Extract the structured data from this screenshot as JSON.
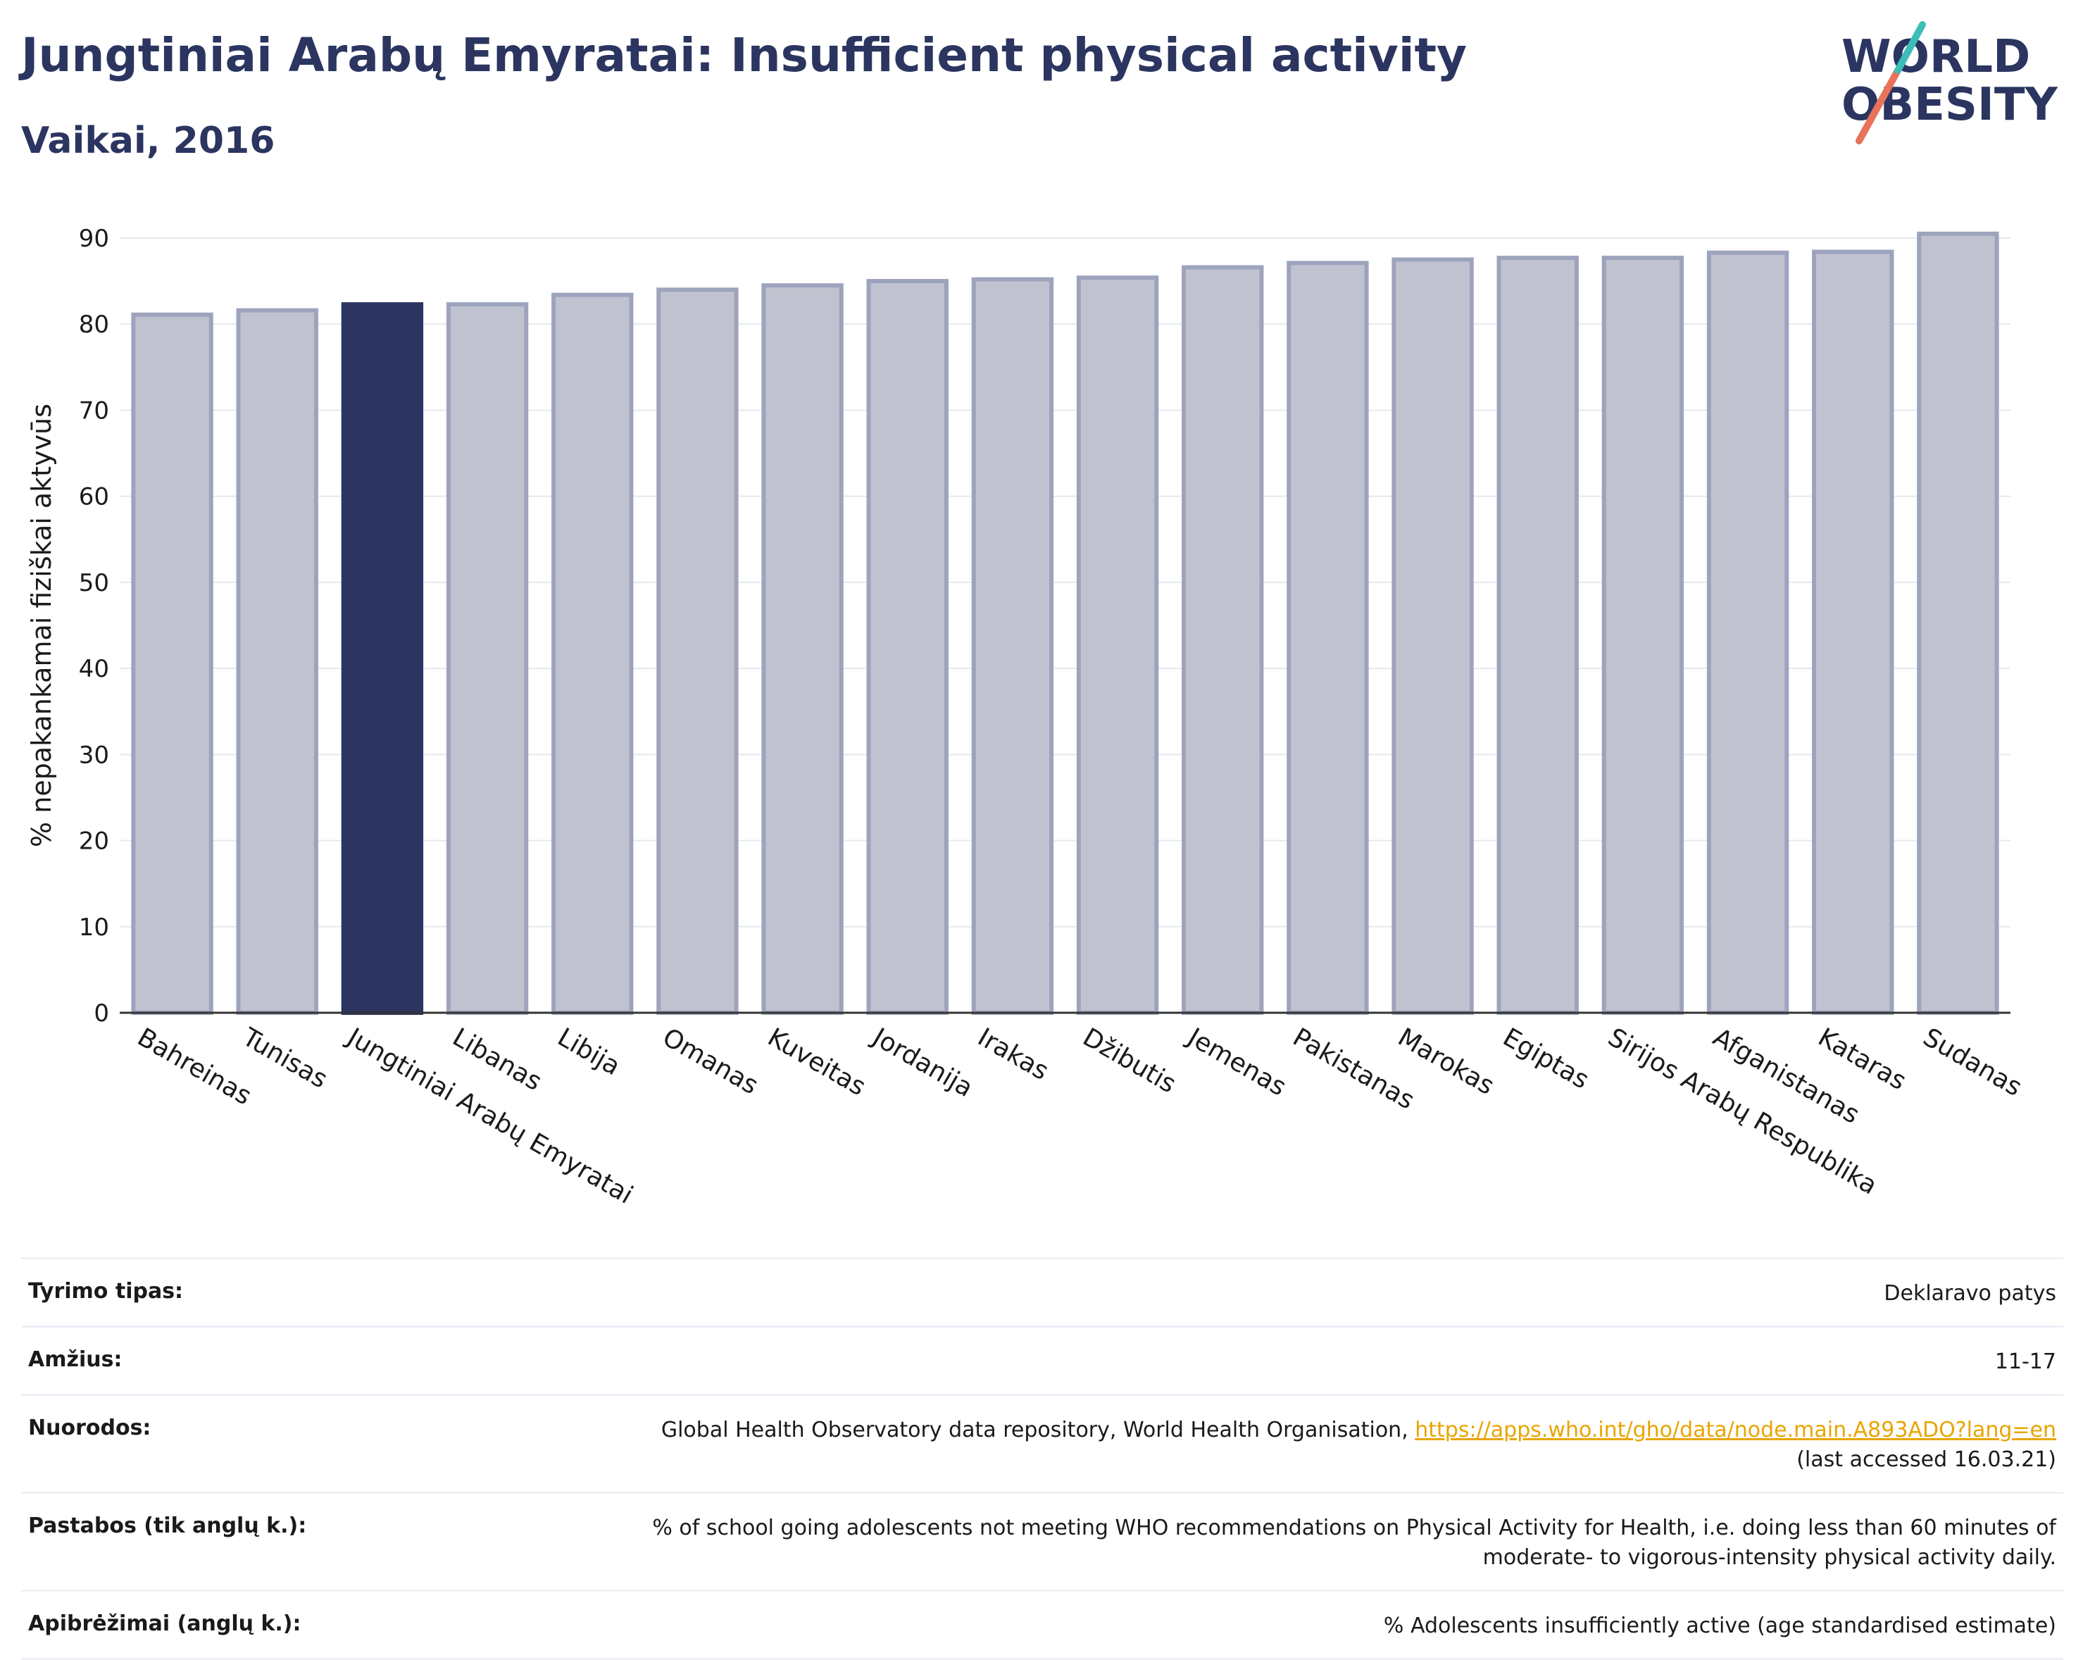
{
  "header": {
    "title": "Jungtiniai Arabų Emyratai: Insufficient physical activity",
    "subtitle": "Vaikai, 2016"
  },
  "logo": {
    "line1": "WORLD",
    "line2": "OBESITY"
  },
  "chart_data": {
    "type": "bar",
    "title": "Jungtiniai Arabų Emyratai: Insufficient physical activity",
    "subtitle": "Vaikai, 2016",
    "xlabel": "",
    "ylabel": "% nepakankamai fiziškai aktyvūs",
    "ylim": [
      0,
      90
    ],
    "yticks": [
      0,
      10,
      20,
      30,
      40,
      50,
      60,
      70,
      80,
      90
    ],
    "grid": true,
    "highlight": "Jungtiniai Arabų Emyratai",
    "categories": [
      "Bahreinas",
      "Tunisas",
      "Jungtiniai Arabų Emyratai",
      "Libanas",
      "Libija",
      "Omanas",
      "Kuveitas",
      "Jordanija",
      "Irakas",
      "Džibutis",
      "Jemenas",
      "Pakistanas",
      "Marokas",
      "Egiptas",
      "Sirijos Arabų Respublika",
      "Afganistanas",
      "Kataras",
      "Sudanas"
    ],
    "values": [
      81.1,
      81.6,
      82.3,
      82.3,
      83.4,
      84.0,
      84.5,
      85.0,
      85.2,
      85.4,
      86.6,
      87.1,
      87.5,
      87.7,
      87.7,
      88.3,
      88.4,
      90.5
    ],
    "colors": {
      "bar": "#c0c3cf",
      "bar_stroke": "#9ea3bd",
      "highlight": "#2b3560"
    }
  },
  "info": {
    "survey_label": "Tyrimo tipas:",
    "survey_value": "Deklaravo patys",
    "age_label": "Amžius:",
    "age_value": "11-17",
    "refs_label": "Nuorodos:",
    "refs_text": "Global Health Observatory data repository, World Health Organisation, ",
    "refs_link": "https://apps.who.int/gho/data/node.main.A893ADO?lang=en",
    "refs_accessed": "(last accessed 16.03.21)",
    "notes_label": "Pastabos (tik anglų k.):",
    "notes_line1": "% of school going adolescents not meeting WHO recommendations on Physical Activity for Health, i.e. doing less than 60 minutes of",
    "notes_line2": "moderate- to vigorous-intensity physical activity daily.",
    "defs_label": "Apibrėžimai (anglų k.):",
    "defs_value": "% Adolescents insufficiently active (age standardised estimate)"
  }
}
